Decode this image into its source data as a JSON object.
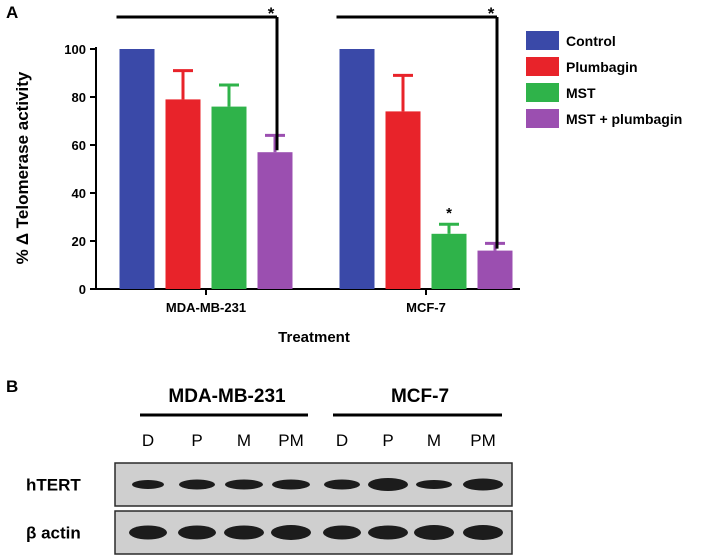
{
  "panel_a_letter": "A",
  "panel_b_letter": "B",
  "chart_data": {
    "type": "bar",
    "title": "",
    "xlabel": "Treatment",
    "ylabel": "% Δ Telomerase activity",
    "ylim": [
      0,
      100
    ],
    "yticks": [
      "0",
      "20",
      "40",
      "60",
      "80",
      "100"
    ],
    "categories": [
      "MDA-MB-231",
      "MCF-7"
    ],
    "legend_position": "top-right",
    "grid": false,
    "series": [
      {
        "name": "Control",
        "color": "#3a49a8",
        "values": [
          100,
          100
        ],
        "errors": [
          0,
          0
        ]
      },
      {
        "name": "Plumbagin",
        "color": "#e8232a",
        "values": [
          79,
          74
        ],
        "errors": [
          12,
          15
        ]
      },
      {
        "name": "MST",
        "color": "#2fb34a",
        "values": [
          76,
          23
        ],
        "errors": [
          9,
          4
        ]
      },
      {
        "name": "MST + plumbagin",
        "color": "#9b4fb0",
        "values": [
          57,
          16
        ],
        "errors": [
          7,
          3
        ]
      }
    ],
    "annotations": [
      {
        "text": "*",
        "kind": "bracket",
        "category": 0,
        "from_series": 0,
        "to_series": 3
      },
      {
        "text": "*",
        "kind": "bracket",
        "category": 1,
        "from_series": 0,
        "to_series": 3
      },
      {
        "text": "*",
        "kind": "bar",
        "category": 1,
        "series": 2
      }
    ]
  },
  "blot": {
    "groups": [
      "MDA-MB-231",
      "MCF-7"
    ],
    "lanes": [
      "D",
      "P",
      "M",
      "PM",
      "D",
      "P",
      "M",
      "PM"
    ],
    "rows": [
      "hTERT",
      "β actin"
    ]
  }
}
